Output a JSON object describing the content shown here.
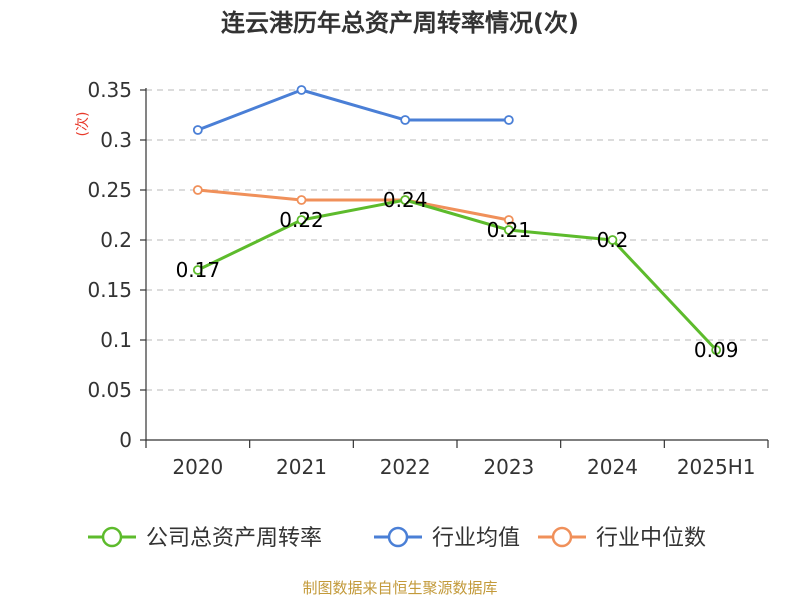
{
  "chart_data": {
    "type": "line",
    "title": "连云港历年总资产周转率情况(次)",
    "ylabel": "(次)",
    "categories": [
      "2020",
      "2021",
      "2022",
      "2023",
      "2024",
      "2025H1"
    ],
    "y_ticks": [
      "0",
      "0.05",
      "0.1",
      "0.15",
      "0.2",
      "0.25",
      "0.3",
      "0.35"
    ],
    "ylim": [
      0,
      0.35
    ],
    "grid": true,
    "legend_position": "bottom",
    "series": [
      {
        "name": "公司总资产周转率",
        "color": "#5dbb2c",
        "values": [
          0.17,
          0.22,
          0.24,
          0.21,
          0.2,
          0.09
        ],
        "labels": [
          "0.17",
          "0.22",
          "0.24",
          "0.21",
          "0.2",
          "0.09"
        ]
      },
      {
        "name": "行业均值",
        "color": "#4a7fd6",
        "values": [
          0.31,
          0.35,
          0.32,
          0.32,
          null,
          null
        ]
      },
      {
        "name": "行业中位数",
        "color": "#f0905a",
        "values": [
          0.25,
          0.24,
          0.24,
          0.22,
          null,
          null
        ]
      }
    ]
  },
  "source": "制图数据来自恒生聚源数据库"
}
